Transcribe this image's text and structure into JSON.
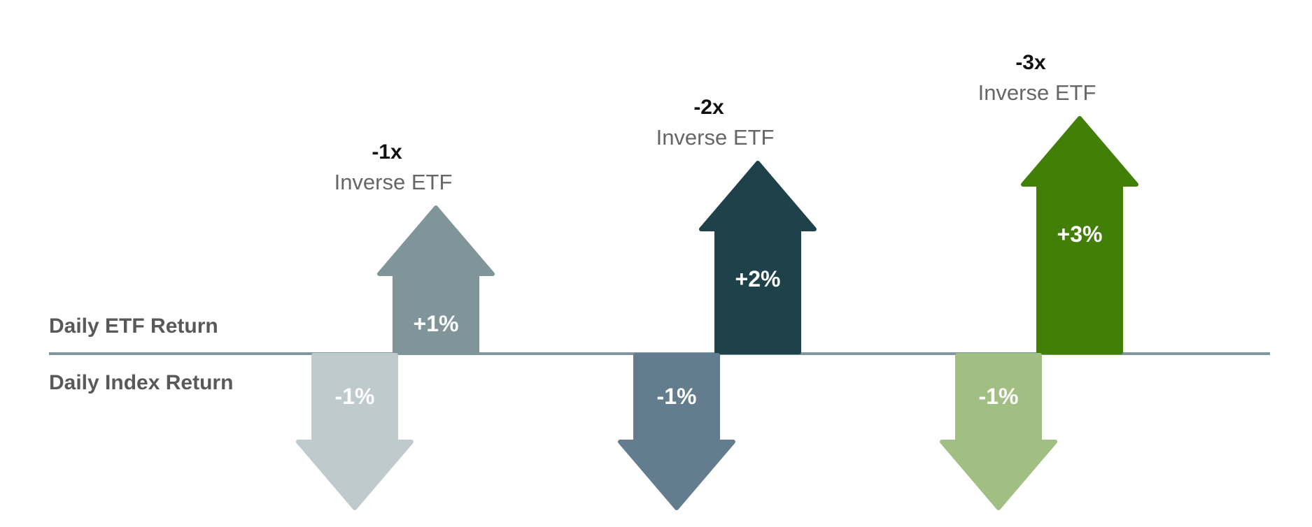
{
  "row_labels": {
    "etf": "Daily ETF Return",
    "index": "Daily Index Return"
  },
  "colors": {
    "baseline": "#7F979D"
  },
  "groups": [
    {
      "multiplier": "-1x",
      "etf_name": "Inverse ETF",
      "up": {
        "label": "+1%",
        "value": 1,
        "color": "#7F959A"
      },
      "down": {
        "label": "-1%",
        "value": -1,
        "color": "#BFCACC"
      }
    },
    {
      "multiplier": "-2x",
      "etf_name": "Inverse ETF",
      "up": {
        "label": "+2%",
        "value": 2,
        "color": "#1F424A"
      },
      "down": {
        "label": "-1%",
        "value": -1,
        "color": "#637D8E"
      }
    },
    {
      "multiplier": "-3x",
      "etf_name": "Inverse ETF",
      "up": {
        "label": "+3%",
        "value": 3,
        "color": "#427F07"
      },
      "down": {
        "label": "-1%",
        "value": -1,
        "color": "#A1BF83"
      }
    }
  ]
}
